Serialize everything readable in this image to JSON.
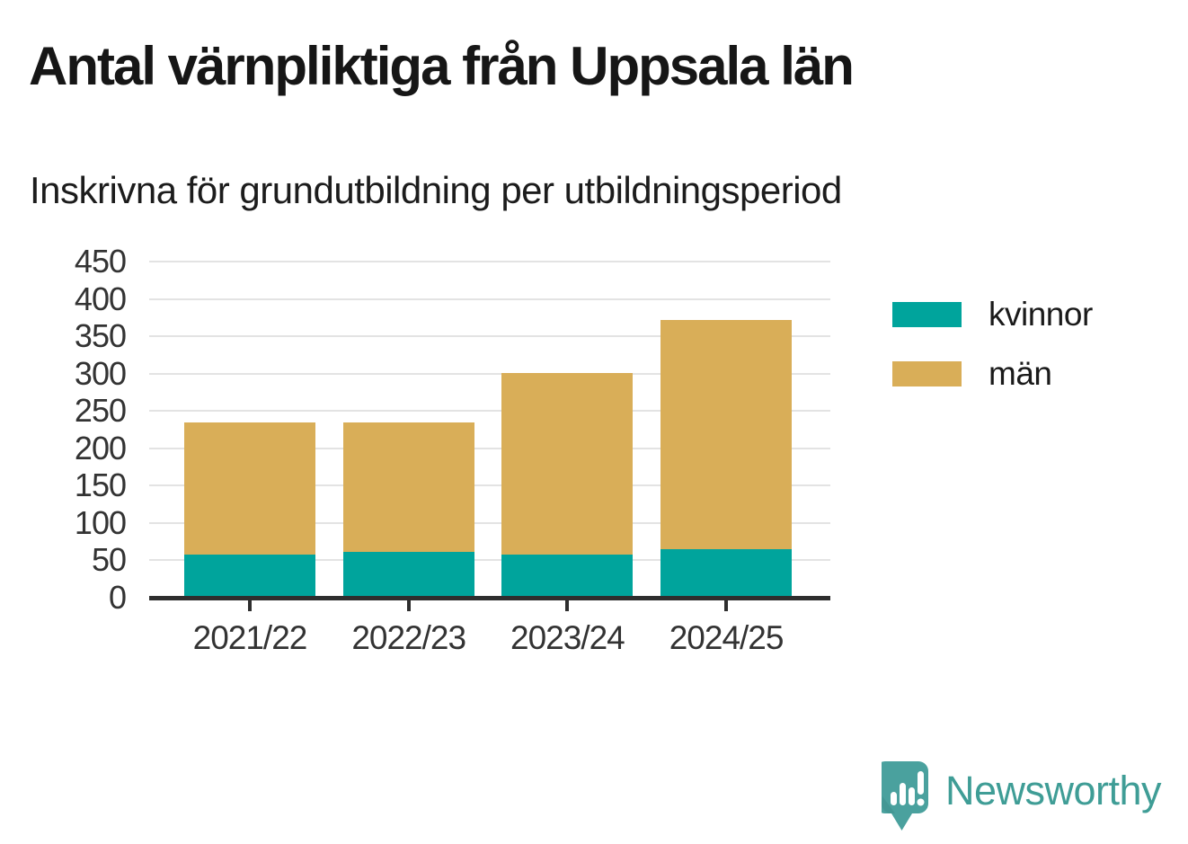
{
  "page": {
    "title": "Antal värnpliktiga från Uppsala län",
    "subtitle": "Inskrivna för grundutbildning per utbildningsperiod"
  },
  "chart_data": {
    "type": "bar",
    "stacked": true,
    "title": "Antal värnpliktiga från Uppsala län",
    "subtitle": "Inskrivna för grundutbildning per utbildningsperiod",
    "categories": [
      "2021/22",
      "2022/23",
      "2023/24",
      "2024/25"
    ],
    "series": [
      {
        "name": "kvinnor",
        "key": "kvinnor",
        "color": "#00a49c",
        "values": [
          58,
          61,
          58,
          65
        ]
      },
      {
        "name": "män",
        "key": "man",
        "color": "#d9ae58",
        "values": [
          177,
          174,
          243,
          307
        ]
      }
    ],
    "stack_totals": [
      235,
      235,
      301,
      372
    ],
    "ylim": [
      0,
      450
    ],
    "yticks": [
      0,
      50,
      100,
      150,
      200,
      250,
      300,
      350,
      400,
      450
    ],
    "grid": "horizontal",
    "legend_position": "right"
  },
  "footer": {
    "brand": "Newsworthy"
  },
  "colors": {
    "kvinnor": "#00a49c",
    "man": "#d9ae58",
    "gridline": "#e3e3e3",
    "axis": "#2e2e2e",
    "text": "#333333",
    "brand_teal": "#3f9d96",
    "logo_bubble": "#4aa19e"
  }
}
